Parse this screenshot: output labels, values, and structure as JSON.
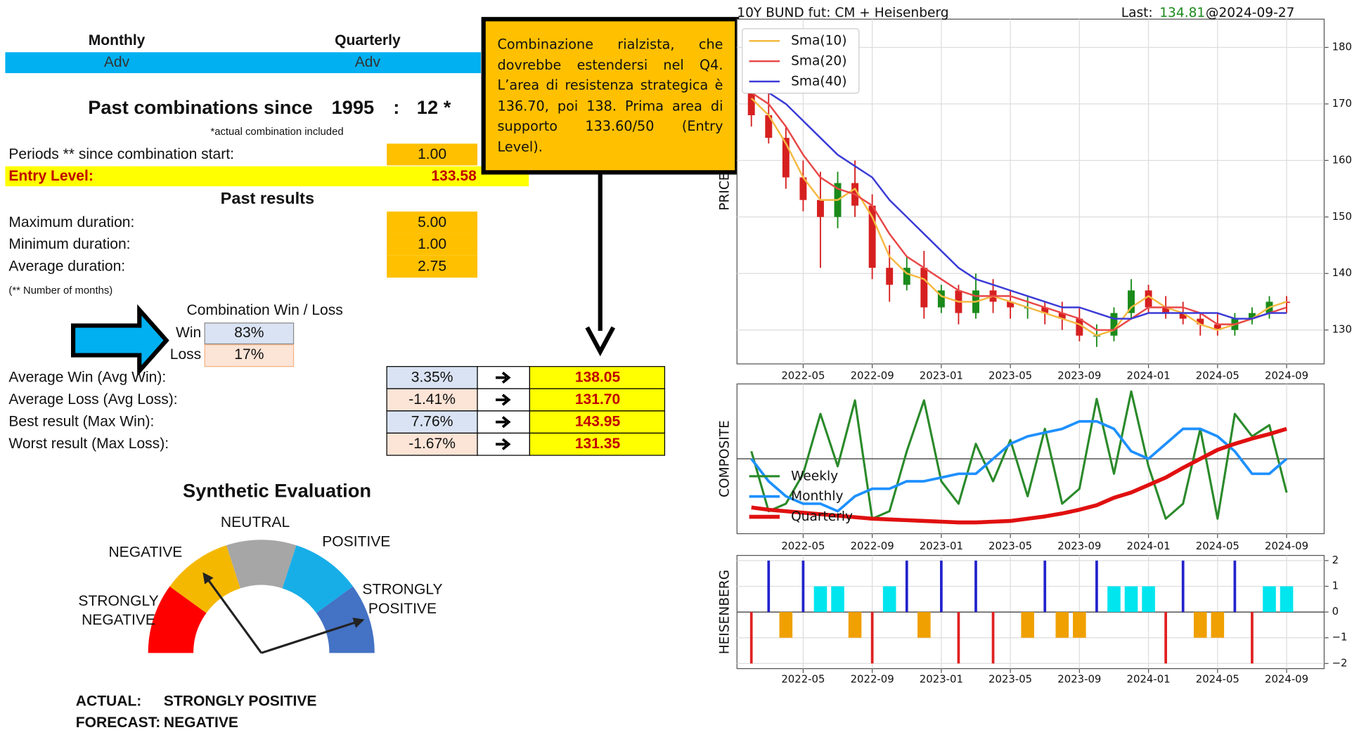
{
  "report": {
    "header": {
      "monthly": "Monthly",
      "quarterly": "Quarterly",
      "monthly_value": "Adv",
      "quarterly_value": "Adv"
    },
    "past": {
      "label": "Past combinations since",
      "year": "1995",
      "separator": ":",
      "count": "12 *",
      "note": "*actual combination included"
    },
    "periods": {
      "label": "Periods ** since combination start:",
      "value": "1.00"
    },
    "entry": {
      "label": "Entry Level:",
      "value": "133.58"
    },
    "past_results": {
      "title": "Past results",
      "rows": [
        {
          "label": "Maximum duration:",
          "value": "5.00"
        },
        {
          "label": "Minimum duration:",
          "value": "1.00"
        },
        {
          "label": "Average duration:",
          "value": "2.75"
        }
      ]
    },
    "months_note": "(** Number of months)",
    "win_loss": {
      "title": "Combination Win / Loss",
      "win_label": "Win",
      "win": "83%",
      "loss_label": "Loss",
      "loss": "17%"
    },
    "results": {
      "rows": [
        {
          "label": "Average Win (Avg Win):",
          "pct": "3.35%",
          "target": "138.05",
          "color": "#dae3f3"
        },
        {
          "label": "Average Loss (Avg Loss):",
          "pct": "-1.41%",
          "target": "131.70",
          "color": "#fce4d6"
        },
        {
          "label": "Best result (Max Win):",
          "pct": "7.76%",
          "target": "143.95",
          "color": "#dae3f3"
        },
        {
          "label": "Worst result (Max Loss):",
          "pct": "-1.67%",
          "target": "131.35",
          "color": "#fce4d6"
        }
      ]
    },
    "evaluation": {
      "title": "Synthetic Evaluation",
      "segments": [
        {
          "lines": [
            "STRONGLY",
            "NEGATIVE"
          ],
          "color": "#ff0000"
        },
        {
          "lines": [
            "NEGATIVE"
          ],
          "color": "#f5b800"
        },
        {
          "lines": [
            "NEUTRAL"
          ],
          "color": "#a6a6a6"
        },
        {
          "lines": [
            "POSITIVE"
          ],
          "color": "#17aee8"
        },
        {
          "lines": [
            "STRONGLY",
            "POSITIVE"
          ],
          "color": "#4472c4"
        }
      ],
      "actual_label": "ACTUAL:",
      "actual": "STRONGLY POSITIVE",
      "forecast_label": "FORECAST:",
      "forecast": "NEGATIVE"
    },
    "annotation": "Combinazione rialzista, che dovrebbe estendersi nel Q4. L’area di resistenza strategica è 136.70, poi 138. Prima area di supporto 133.60/50 (Entry Level)."
  },
  "chart_data": [
    {
      "type": "candlestick",
      "title": "10Y BUND fut: CM + Heisenberg",
      "last_label": "Last:",
      "last_value": 134.81,
      "last_date": "@2024-09-27",
      "y_label": "PRICE",
      "x": [
        "2022-02",
        "2022-03",
        "2022-04",
        "2022-05",
        "2022-06",
        "2022-07",
        "2022-08",
        "2022-09",
        "2022-10",
        "2022-11",
        "2022-12",
        "2023-01",
        "2023-02",
        "2023-03",
        "2023-04",
        "2023-05",
        "2023-06",
        "2023-07",
        "2023-08",
        "2023-09",
        "2023-10",
        "2023-11",
        "2023-12",
        "2024-01",
        "2024-02",
        "2024-03",
        "2024-04",
        "2024-05",
        "2024-06",
        "2024-07",
        "2024-08",
        "2024-09"
      ],
      "open": [
        172,
        168,
        164,
        157,
        153,
        150,
        156,
        152,
        141,
        138,
        141,
        134,
        137,
        133,
        137,
        135,
        134,
        134,
        133,
        132,
        129,
        129,
        133,
        137,
        134,
        133,
        132,
        131,
        130,
        132,
        133,
        135
      ],
      "high": [
        173,
        172,
        166,
        160,
        158,
        158,
        160,
        154,
        145,
        143,
        144,
        138,
        138,
        140,
        139,
        137,
        136,
        135,
        135,
        134,
        131,
        134,
        139,
        138,
        136,
        135,
        133,
        133,
        133,
        134,
        136,
        136
      ],
      "low": [
        166,
        163,
        155,
        151,
        141,
        148,
        150,
        139,
        135,
        137,
        132,
        133,
        131,
        132,
        133,
        132,
        132,
        131,
        130,
        128,
        127,
        128,
        132,
        133,
        132,
        131,
        129,
        129,
        129,
        131,
        132,
        133
      ],
      "close": [
        168,
        164,
        157,
        153,
        150,
        156,
        152,
        141,
        138,
        141,
        134,
        137,
        133,
        137,
        135,
        134,
        134,
        133,
        132,
        129,
        129,
        133,
        137,
        134,
        133,
        132,
        131,
        130,
        132,
        133,
        135,
        134.81
      ],
      "up_color": "#1a8a1a",
      "down_color": "#d62020",
      "series": [
        {
          "name": "Sma(10)",
          "color": "#f5b942",
          "values": [
            171,
            168,
            163,
            157,
            153,
            153,
            155,
            150,
            143,
            140,
            139,
            136,
            135,
            135,
            136,
            135,
            134,
            133,
            132,
            131,
            129,
            130,
            134,
            136,
            134,
            133,
            131,
            130,
            131,
            132,
            134,
            135
          ]
        },
        {
          "name": "Sma(20)",
          "color": "#e84848",
          "values": [
            172,
            170,
            166,
            161,
            157,
            155,
            154,
            152,
            147,
            143,
            141,
            139,
            137,
            136,
            136,
            136,
            135,
            134,
            133,
            132,
            130,
            130,
            132,
            134,
            134,
            134,
            133,
            131,
            131,
            132,
            133,
            134
          ]
        },
        {
          "name": "Sma(40)",
          "color": "#3b3bd6",
          "values": [
            172,
            172,
            170,
            167,
            164,
            161,
            159,
            157,
            153,
            150,
            147,
            144,
            141,
            139,
            138,
            137,
            136,
            135,
            134,
            134,
            133,
            132,
            132,
            133,
            133,
            133,
            133,
            133,
            132,
            132,
            133,
            133
          ]
        }
      ],
      "xticks": [
        "2022-05",
        "2022-09",
        "2023-01",
        "2023-05",
        "2023-09",
        "2024-01",
        "2024-05",
        "2024-09"
      ],
      "ylim": [
        124,
        185
      ],
      "yticks": [
        130,
        140,
        150,
        160,
        170,
        180
      ],
      "grid": true,
      "legend": "upper left"
    },
    {
      "type": "line",
      "y_label": "COMPOSITE",
      "x": [
        "2022-02",
        "2022-03",
        "2022-04",
        "2022-05",
        "2022-06",
        "2022-07",
        "2022-08",
        "2022-09",
        "2022-10",
        "2022-11",
        "2022-12",
        "2023-01",
        "2023-02",
        "2023-03",
        "2023-04",
        "2023-05",
        "2023-06",
        "2023-07",
        "2023-08",
        "2023-09",
        "2023-10",
        "2023-11",
        "2023-12",
        "2024-01",
        "2024-02",
        "2024-03",
        "2024-04",
        "2024-05",
        "2024-06",
        "2024-07",
        "2024-08",
        "2024-09"
      ],
      "series": [
        {
          "name": "Weekly",
          "color": "#2a8a2a",
          "width": 2.5,
          "values": [
            0.1,
            -0.7,
            -0.6,
            -0.2,
            0.6,
            -0.1,
            0.78,
            -0.8,
            -0.7,
            0.1,
            0.78,
            -0.3,
            -0.6,
            0.2,
            -0.3,
            0.25,
            -0.5,
            0.4,
            -0.6,
            -0.4,
            0.8,
            -0.2,
            0.9,
            -0.1,
            -0.8,
            -0.6,
            0.4,
            -0.8,
            0.6,
            0.3,
            0.45,
            -0.45
          ]
        },
        {
          "name": "Monthly",
          "color": "#1e90ff",
          "width": 3,
          "values": [
            0,
            -0.3,
            -0.5,
            -0.6,
            -0.6,
            -0.7,
            -0.5,
            -0.4,
            -0.4,
            -0.3,
            -0.3,
            -0.25,
            -0.2,
            -0.2,
            0.0,
            0.2,
            0.3,
            0.35,
            0.4,
            0.5,
            0.5,
            0.4,
            0.1,
            0.0,
            0.2,
            0.4,
            0.4,
            0.3,
            0.1,
            -0.2,
            -0.2,
            0.0
          ]
        },
        {
          "name": "Quarterly",
          "color": "#e01010",
          "width": 4.5,
          "values": [
            -0.65,
            -0.68,
            -0.7,
            -0.72,
            -0.74,
            -0.76,
            -0.78,
            -0.8,
            -0.81,
            -0.82,
            -0.83,
            -0.84,
            -0.85,
            -0.85,
            -0.84,
            -0.83,
            -0.8,
            -0.77,
            -0.73,
            -0.68,
            -0.62,
            -0.52,
            -0.45,
            -0.35,
            -0.25,
            -0.12,
            0.0,
            0.12,
            0.2,
            0.27,
            0.33,
            0.4
          ]
        }
      ],
      "xticks": [
        "2022-05",
        "2022-09",
        "2023-01",
        "2023-05",
        "2023-09",
        "2024-01",
        "2024-05",
        "2024-09"
      ],
      "ylim": [
        -1,
        1
      ],
      "zero_line": 0,
      "grid": true,
      "legend": "lower left"
    },
    {
      "type": "bar",
      "y_label": "HEISENBERG",
      "x": [
        "2022-02",
        "2022-03",
        "2022-04",
        "2022-05",
        "2022-06",
        "2022-07",
        "2022-08",
        "2022-09",
        "2022-10",
        "2022-11",
        "2022-12",
        "2023-01",
        "2023-02",
        "2023-03",
        "2023-04",
        "2023-05",
        "2023-06",
        "2023-07",
        "2023-08",
        "2023-09",
        "2023-10",
        "2023-11",
        "2023-12",
        "2024-01",
        "2024-02",
        "2024-03",
        "2024-04",
        "2024-05",
        "2024-06",
        "2024-07",
        "2024-08",
        "2024-09"
      ],
      "values": [
        -2,
        2,
        -1,
        2,
        1,
        1,
        -1,
        -2,
        1,
        2,
        -1,
        2,
        -2,
        2,
        -2,
        0,
        -1,
        2,
        -1,
        -1,
        2,
        1,
        1,
        1,
        -2,
        2,
        -1,
        -1,
        2,
        -2,
        1,
        1
      ],
      "level_colors": {
        "2": "#2222cc",
        "1": "#00e5ee",
        "-1": "#f0a000",
        "-2": "#e02020"
      },
      "xticks": [
        "2022-05",
        "2022-09",
        "2023-01",
        "2023-05",
        "2023-09",
        "2024-01",
        "2024-05",
        "2024-09"
      ],
      "ylim": [
        -2.2,
        2.2
      ],
      "yticks": [
        2,
        1,
        0,
        {
          "value": -1,
          "label": "−1"
        },
        {
          "value": -2,
          "label": "−2"
        }
      ],
      "zero_line": 0,
      "grid": true
    }
  ]
}
